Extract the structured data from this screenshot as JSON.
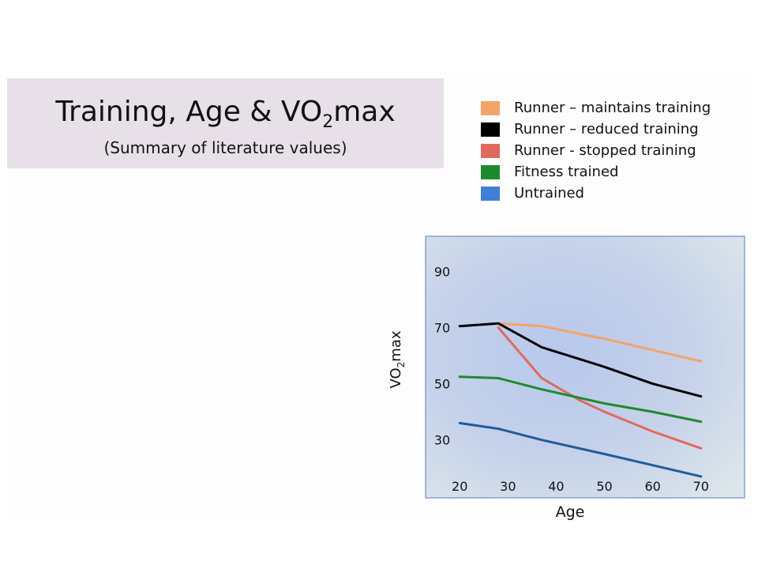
{
  "title": {
    "main_prefix": "Training, Age & VO",
    "main_sub": "2",
    "main_suffix": "max",
    "subtitle": "(Summary of literature values)"
  },
  "legend": [
    {
      "label": "Runner – maintains training",
      "color": "#f4a36a"
    },
    {
      "label": "Runner – reduced training",
      "color": "#000000"
    },
    {
      "label": "Runner - stopped training",
      "color": "#e06a5e"
    },
    {
      "label": "Fitness trained",
      "color": "#1e8a2e"
    },
    {
      "label": "Untrained",
      "color": "#3f7fd6"
    }
  ],
  "chart_data": {
    "type": "line",
    "xlabel": "Age",
    "ylabel_prefix": "VO",
    "ylabel_sub": "2",
    "ylabel_suffix": "max",
    "xticks": [
      20,
      30,
      40,
      50,
      60,
      70
    ],
    "yticks": [
      30,
      50,
      70,
      90
    ],
    "xlim": [
      18,
      72
    ],
    "ylim": [
      15,
      98
    ],
    "grid": false,
    "legend_position": "top-right",
    "series": [
      {
        "name": "Runner – maintains training",
        "color": "#f4a36a",
        "points": [
          [
            28,
            71.5
          ],
          [
            37,
            70.5
          ],
          [
            50,
            66
          ],
          [
            70,
            58
          ]
        ]
      },
      {
        "name": "Runner – reduced training",
        "color": "#000000",
        "points": [
          [
            20,
            70.5
          ],
          [
            28,
            71.5
          ],
          [
            37,
            63
          ],
          [
            50,
            56
          ],
          [
            60,
            50
          ],
          [
            70,
            45.5
          ]
        ]
      },
      {
        "name": "Runner - stopped training",
        "color": "#e06a5e",
        "points": [
          [
            28,
            70
          ],
          [
            37,
            52
          ],
          [
            45,
            44
          ],
          [
            50,
            40
          ],
          [
            60,
            33
          ],
          [
            70,
            27
          ]
        ]
      },
      {
        "name": "Fitness trained",
        "color": "#1e8a2e",
        "points": [
          [
            20,
            52.5
          ],
          [
            28,
            52
          ],
          [
            37,
            48
          ],
          [
            50,
            43
          ],
          [
            60,
            40
          ],
          [
            70,
            36.5
          ]
        ]
      },
      {
        "name": "Untrained",
        "color": "#1f5c9a",
        "points": [
          [
            20,
            36
          ],
          [
            28,
            34
          ],
          [
            37,
            30
          ],
          [
            50,
            25
          ],
          [
            60,
            21
          ],
          [
            70,
            17
          ]
        ]
      }
    ]
  }
}
